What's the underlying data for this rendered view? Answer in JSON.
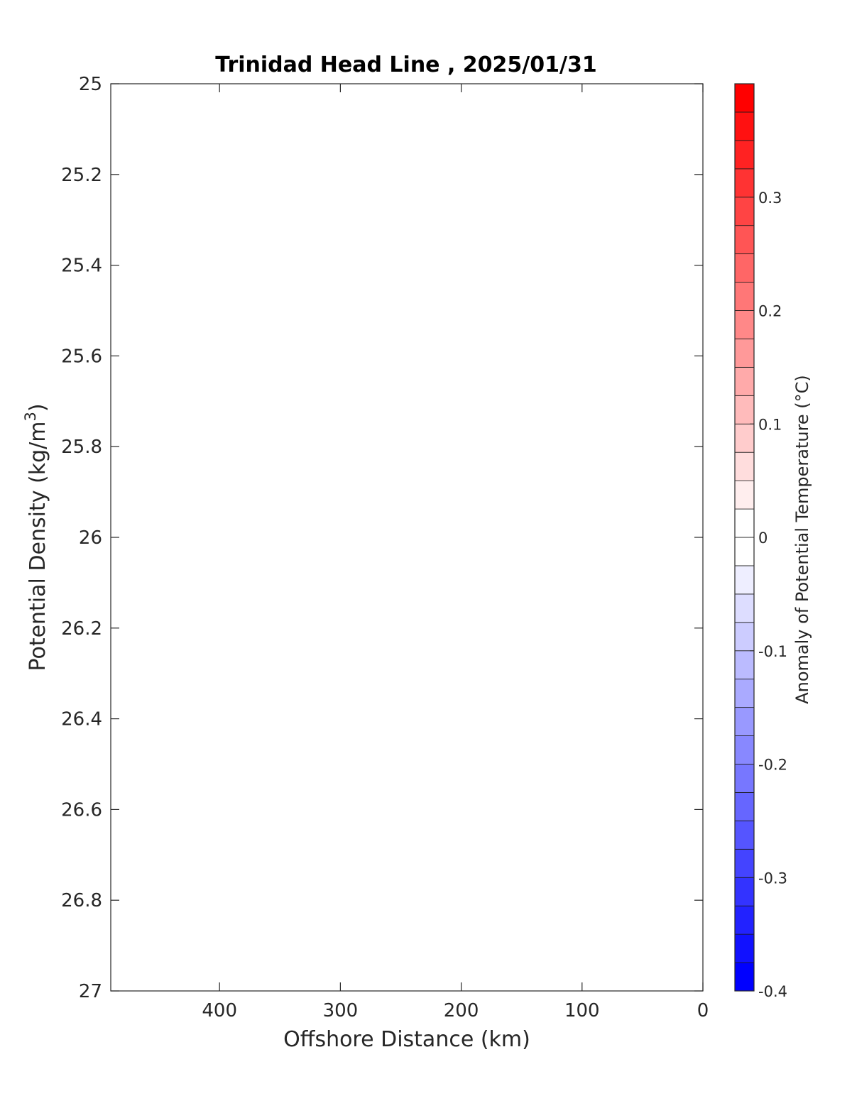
{
  "chart_data": {
    "type": "heatmap",
    "title": "Trinidad Head Line , 2025/01/31",
    "xlabel": "Offshore Distance (km)",
    "ylabel_main": "Potential Density (kg/m",
    "ylabel_sup": "3",
    "ylabel_close": ")",
    "xlim": [
      490,
      0
    ],
    "x_reversed": true,
    "xticks": [
      400,
      300,
      200,
      100,
      0
    ],
    "xtick_labels": [
      "400",
      "300",
      "200",
      "100",
      "0"
    ],
    "ylim": [
      25,
      27
    ],
    "y_reversed": true,
    "yticks": [
      25,
      25.2,
      25.4,
      25.6,
      25.8,
      26,
      26.2,
      26.4,
      26.6,
      26.8,
      27
    ],
    "ytick_labels": [
      "25",
      "25.2",
      "25.4",
      "25.6",
      "25.8",
      "26",
      "26.2",
      "26.4",
      "26.6",
      "26.8",
      "27"
    ],
    "grid": false,
    "values": [],
    "colorbar": {
      "label": "Anomaly of Potential Temperature (°C)",
      "min": -0.4,
      "max": 0.4,
      "step": 0.025,
      "ticks": [
        -0.4,
        -0.3,
        -0.2,
        -0.1,
        0,
        0.1,
        0.2,
        0.3
      ],
      "tick_labels": [
        "-0.4",
        "-0.3",
        "-0.2",
        "-0.1",
        "0",
        "0.1",
        "0.2",
        "0.3"
      ],
      "cold_color": "#0000ff",
      "neutral_color": "#ffffff",
      "warm_color": "#ff0000"
    }
  }
}
